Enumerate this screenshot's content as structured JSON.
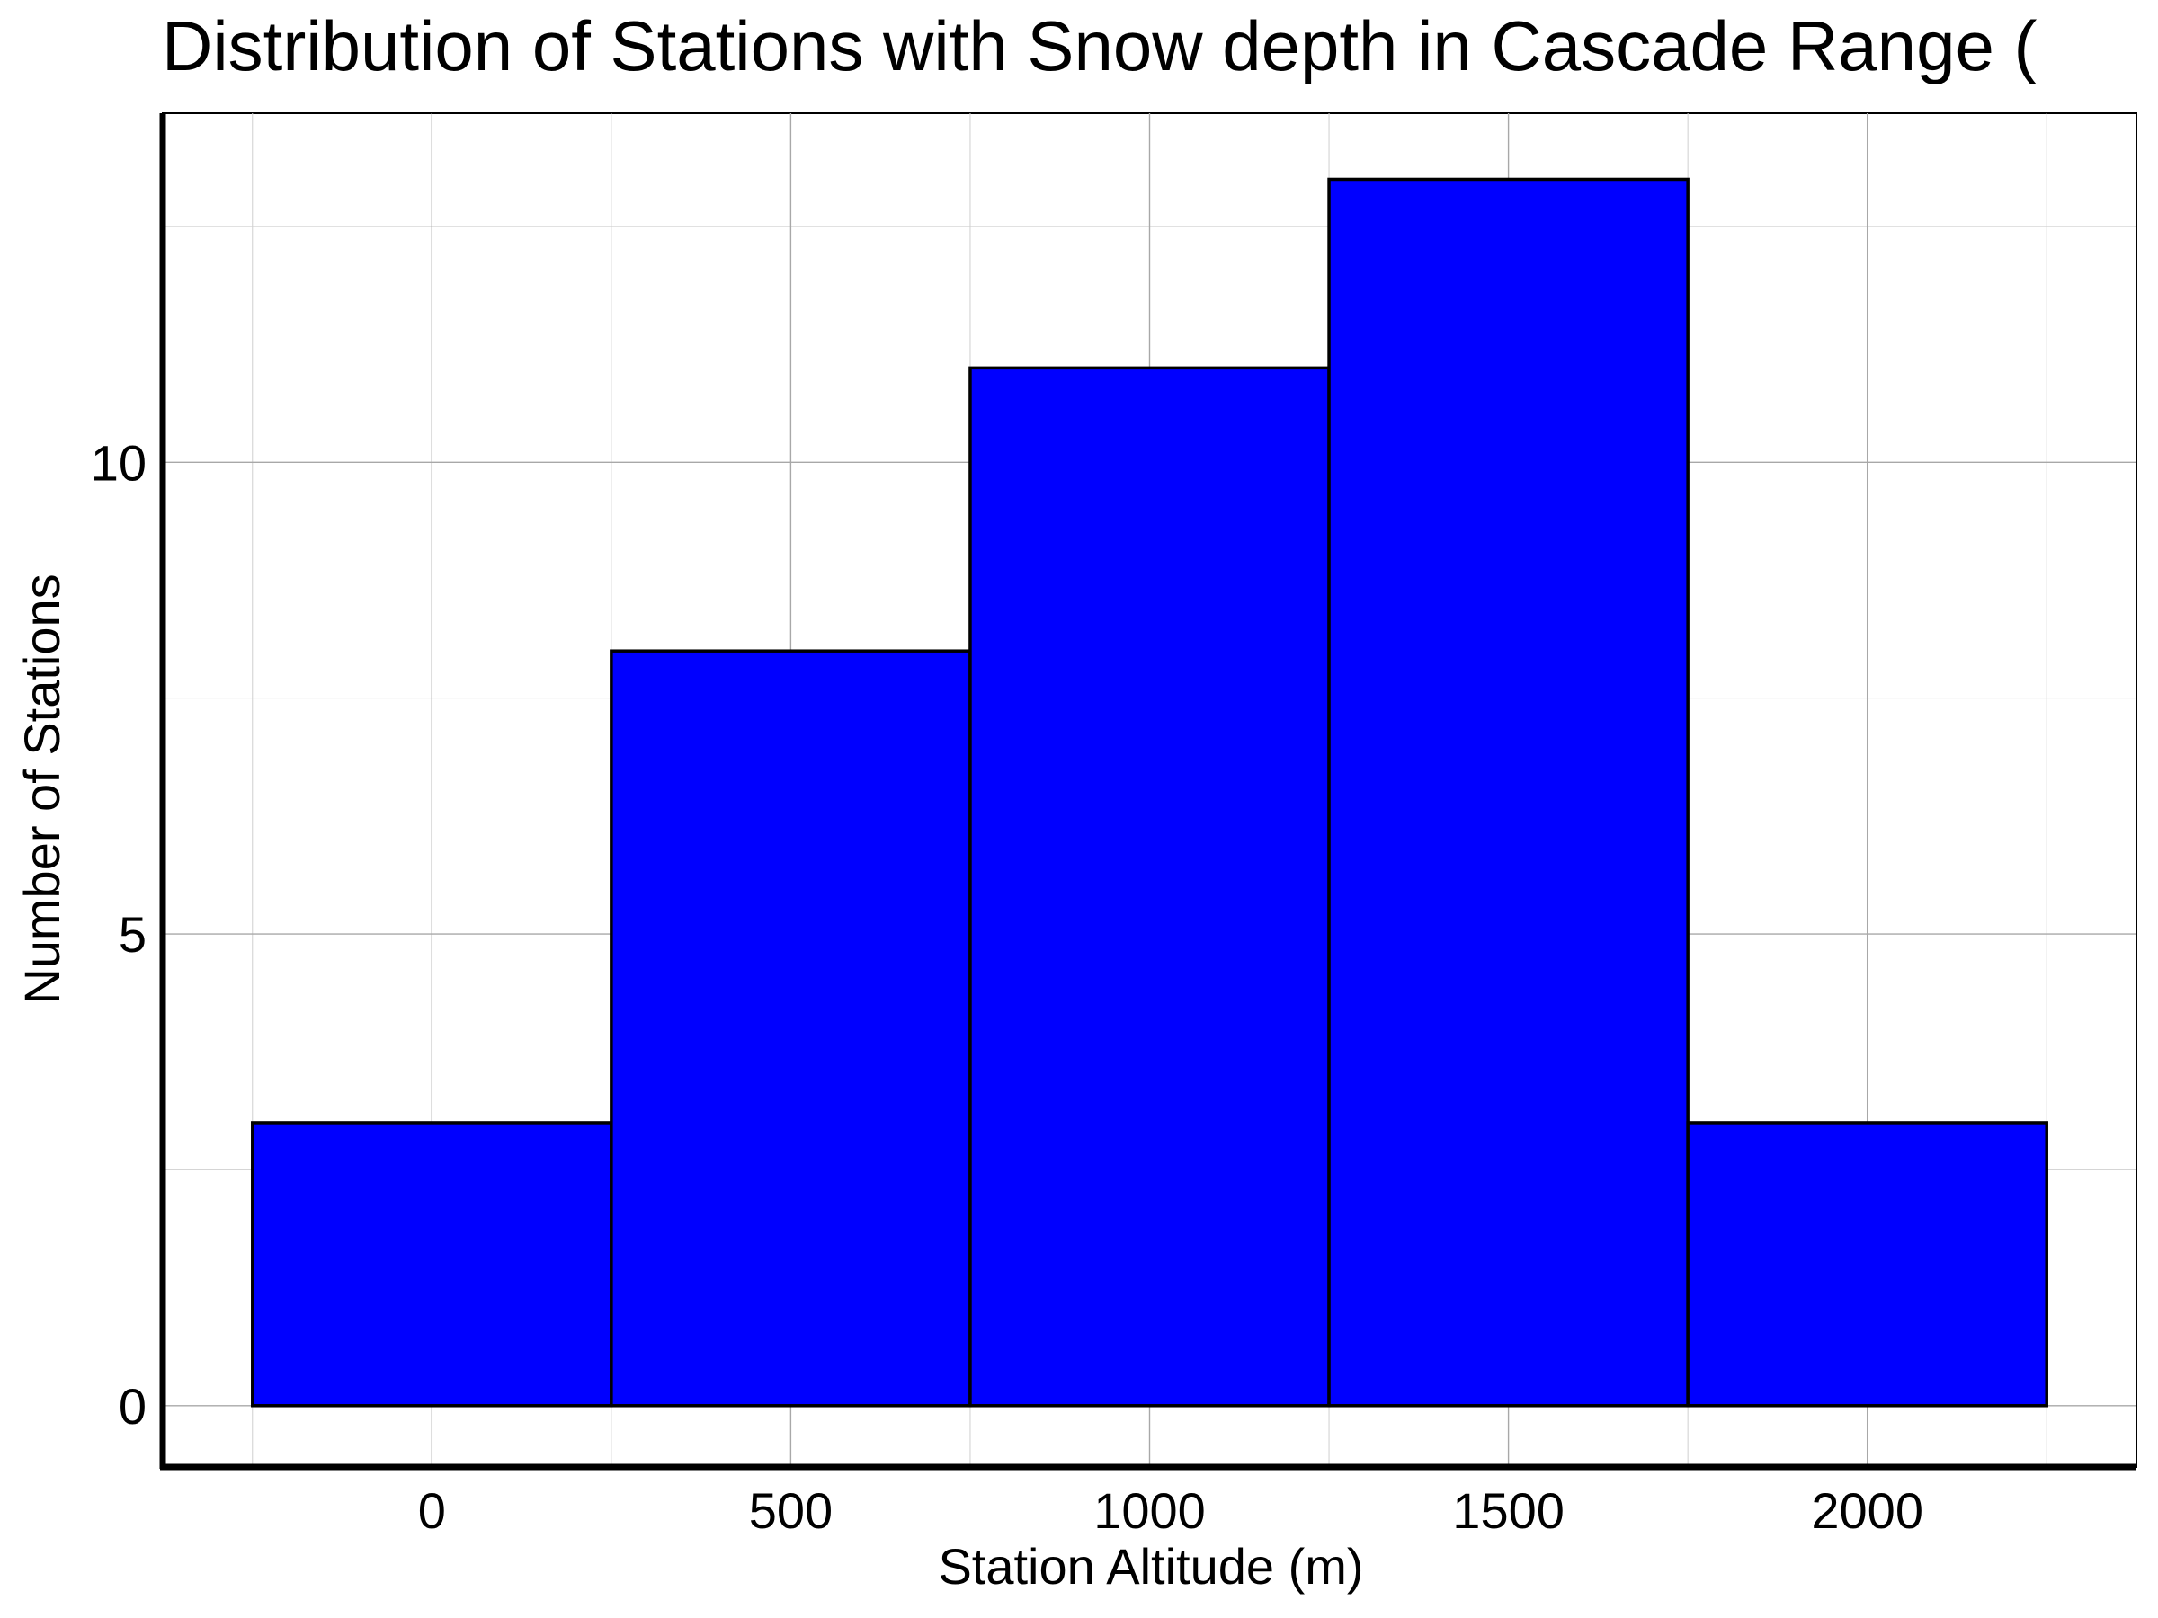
{
  "chart_data": {
    "type": "bar",
    "title": "Distribution of Stations with Snow depth in Cascade Range (",
    "xlabel": "Station Altitude (m)",
    "ylabel": "Number of Stations",
    "bins": [
      {
        "x0": -250,
        "x1": 250,
        "count": 3
      },
      {
        "x0": 250,
        "x1": 750,
        "count": 8
      },
      {
        "x0": 750,
        "x1": 1250,
        "count": 11
      },
      {
        "x0": 1250,
        "x1": 1750,
        "count": 13
      },
      {
        "x0": 1750,
        "x1": 2250,
        "count": 3
      }
    ],
    "xticks": [
      0,
      500,
      1000,
      1500,
      2000
    ],
    "yticks": [
      0,
      5,
      10
    ],
    "xlim": [
      -375,
      2375
    ],
    "ylim": [
      -0.65,
      13.7
    ],
    "grid": true,
    "bar_color": "#0000ff",
    "edge_color": "#000000"
  }
}
